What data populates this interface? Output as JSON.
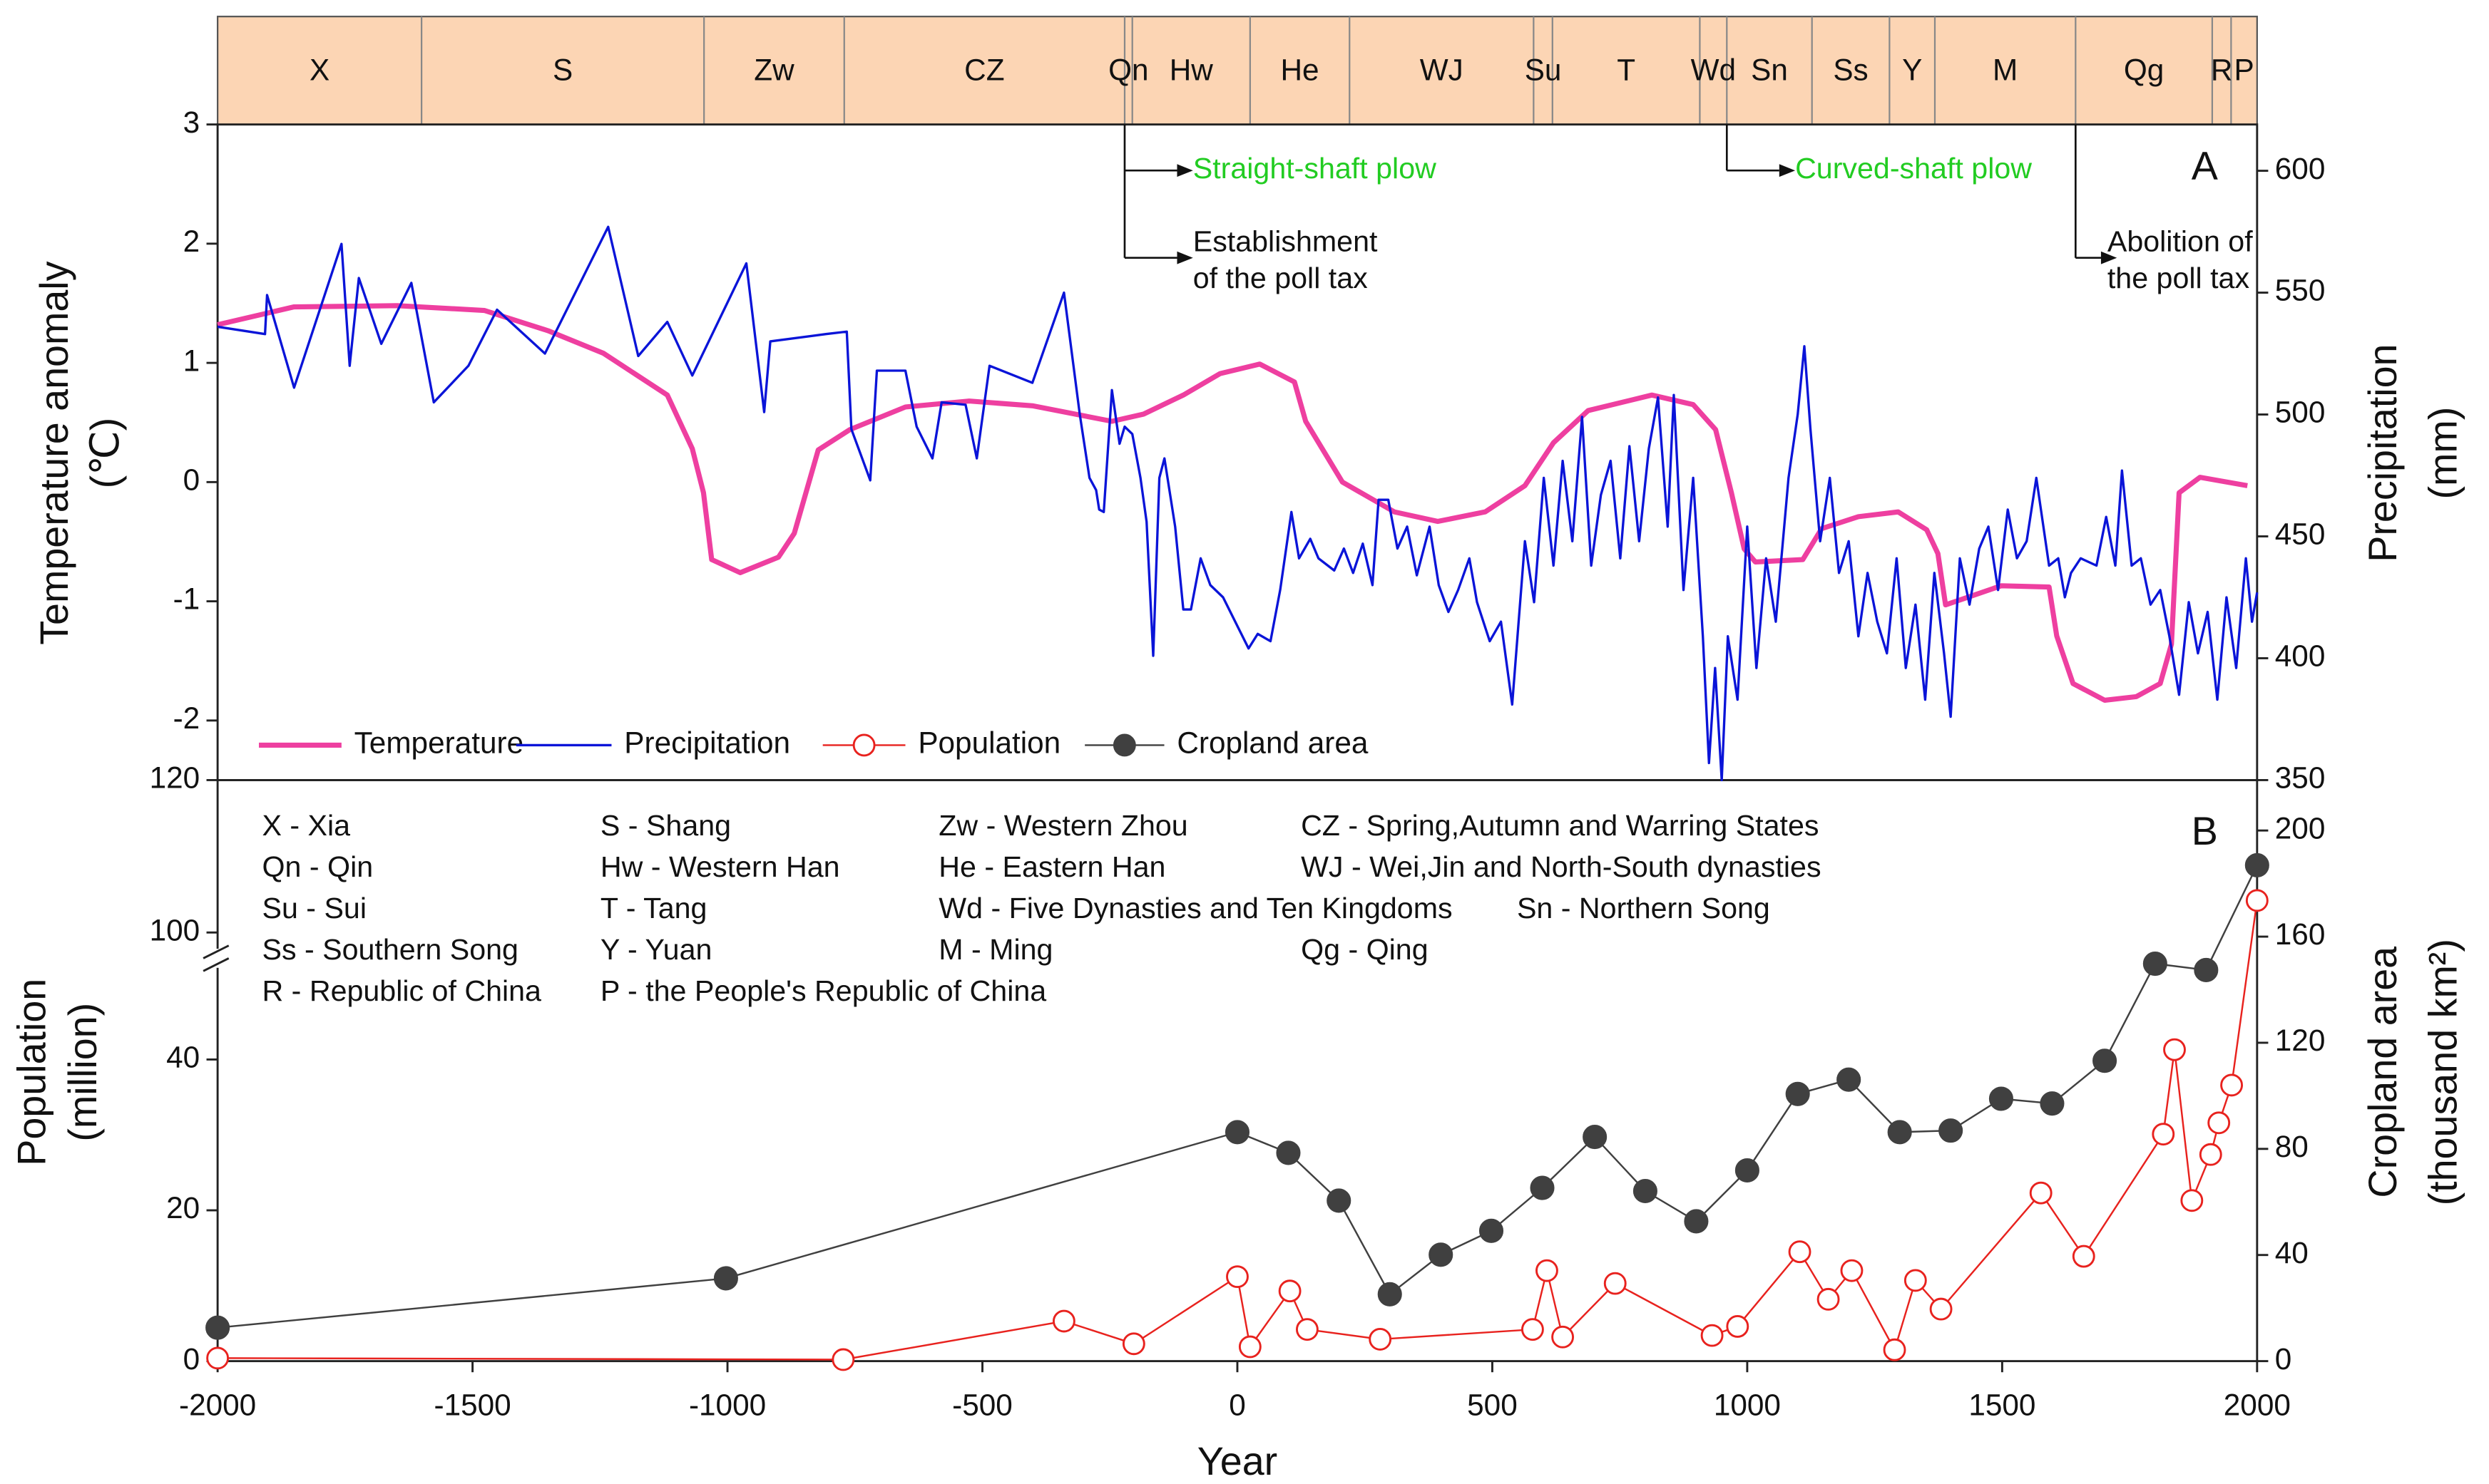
{
  "chart_data": [
    {
      "type": "line",
      "panel_label": "A",
      "xlim": [
        -2000,
        2000
      ],
      "ylim": [
        -2.5,
        3
      ],
      "yticks": [
        3,
        2,
        1,
        0,
        -1,
        -2
      ],
      "y2lim": [
        350,
        619
      ],
      "y2ticks": [
        350,
        400,
        450,
        500,
        550,
        600
      ],
      "ylabel": [
        "Temperature anomaly",
        "(℃)"
      ],
      "y2label": [
        "Precipitation",
        "(mm)"
      ],
      "legend": "lower left",
      "period_bounds": [
        -2000,
        -1600,
        -1046,
        -771,
        -221,
        -206,
        25,
        220,
        581,
        618,
        907,
        960,
        1127,
        1279,
        1368,
        1644,
        1912,
        1949,
        2000
      ],
      "period_labels": [
        "X",
        "S",
        "Zw",
        "CZ",
        "Qn",
        "Hw",
        "He",
        "WJ",
        "Su",
        "T",
        "Wd",
        "Sn",
        "Ss",
        "Y",
        "M",
        "Qg",
        "R",
        "P"
      ],
      "period_color": "#fcd5b4",
      "annotations": [
        {
          "x": -221,
          "lines": [
            "Straight-shaft plow"
          ],
          "color": "#22cc22"
        },
        {
          "x": -221,
          "lines": [
            "Establishment",
            "of the poll tax"
          ],
          "color": "#111111"
        },
        {
          "x": 960,
          "lines": [
            "Curved-shaft plow"
          ],
          "color": "#22cc22"
        },
        {
          "x": 1644,
          "lines": [
            "Abolition of",
            "the poll tax"
          ],
          "color": "#111111"
        }
      ],
      "series": [
        {
          "name": "Temperature",
          "color": "#ee3fa0",
          "x": [
            -2000,
            -1850,
            -1648,
            -1477,
            -1352,
            -1243,
            -1118,
            -1069,
            -1047,
            -1031,
            -975,
            -900,
            -869,
            -822,
            -760,
            -651,
            -526,
            -402,
            -246,
            -184,
            -106,
            -34,
            44,
            112,
            134,
            206,
            308,
            393,
            486,
            564,
            620,
            688,
            813,
            894,
            938,
            969,
            994,
            1016,
            1109,
            1146,
            1218,
            1296,
            1352,
            1374,
            1389,
            1498,
            1592,
            1607,
            1639,
            1701,
            1763,
            1810,
            1832,
            1847,
            1888,
            1981
          ],
          "values": [
            1.32,
            1.47,
            1.48,
            1.44,
            1.27,
            1.08,
            0.73,
            0.28,
            -0.09,
            -0.65,
            -0.76,
            -0.63,
            -0.43,
            0.27,
            0.44,
            0.63,
            0.68,
            0.64,
            0.51,
            0.57,
            0.73,
            0.91,
            0.99,
            0.84,
            0.51,
            0.0,
            -0.25,
            -0.33,
            -0.25,
            -0.03,
            0.33,
            0.6,
            0.73,
            0.65,
            0.44,
            -0.09,
            -0.56,
            -0.67,
            -0.65,
            -0.39,
            -0.29,
            -0.25,
            -0.4,
            -0.6,
            -1.03,
            -0.87,
            -0.88,
            -1.29,
            -1.69,
            -1.83,
            -1.8,
            -1.69,
            -1.36,
            -0.09,
            0.04,
            -0.03
          ]
        },
        {
          "name": "Precipitation",
          "color": "#0a14d8",
          "axis": "y2",
          "x": [
            -2000,
            -1907,
            -1903,
            -1850,
            -1757,
            -1741,
            -1723,
            -1679,
            -1620,
            -1576,
            -1508,
            -1452,
            -1358,
            -1234,
            -1175,
            -1118,
            -1069,
            -963,
            -928,
            -916,
            -807,
            -766,
            -757,
            -720,
            -707,
            -651,
            -629,
            -598,
            -580,
            -533,
            -511,
            -486,
            -402,
            -340,
            -309,
            -290,
            -277,
            -271,
            -262,
            -246,
            -231,
            -221,
            -206,
            -190,
            -178,
            -165,
            -153,
            -143,
            -122,
            -106,
            -91,
            -72,
            -53,
            -28,
            3,
            22,
            40,
            65,
            84,
            106,
            121,
            143,
            159,
            190,
            209,
            227,
            246,
            265,
            277,
            296,
            314,
            333,
            352,
            377,
            395,
            414,
            433,
            455,
            470,
            495,
            517,
            539,
            564,
            582,
            601,
            620,
            638,
            657,
            676,
            694,
            713,
            732,
            751,
            769,
            788,
            807,
            825,
            844,
            856,
            875,
            894,
            913,
            925,
            937,
            950,
            962,
            981,
            1000,
            1018,
            1037,
            1056,
            1081,
            1099,
            1112,
            1124,
            1143,
            1162,
            1180,
            1199,
            1218,
            1236,
            1255,
            1274,
            1293,
            1311,
            1330,
            1349,
            1367,
            1386,
            1399,
            1417,
            1436,
            1455,
            1473,
            1492,
            1511,
            1529,
            1548,
            1567,
            1592,
            1610,
            1623,
            1635,
            1654,
            1685,
            1704,
            1722,
            1735,
            1754,
            1772,
            1791,
            1810,
            1828,
            1847,
            1866,
            1884,
            1903,
            1922,
            1940,
            1959,
            1978,
            1990,
            2000
          ],
          "values": [
            536,
            533,
            549,
            511,
            570,
            520,
            556,
            529,
            554,
            505,
            520,
            543,
            525,
            577,
            524,
            538,
            516,
            562,
            501,
            530,
            533,
            534,
            494,
            473,
            518,
            518,
            495,
            482,
            505,
            504,
            482,
            520,
            513,
            550,
            500,
            474,
            469,
            461,
            460,
            510,
            488,
            495,
            492,
            474,
            456,
            401,
            474,
            482,
            454,
            420,
            420,
            441,
            430,
            425,
            412,
            404,
            410,
            407,
            428,
            460,
            441,
            449,
            441,
            436,
            445,
            435,
            447,
            430,
            465,
            465,
            445,
            454,
            434,
            454,
            430,
            419,
            428,
            441,
            423,
            407,
            415,
            381,
            448,
            423,
            474,
            438,
            481,
            448,
            499,
            438,
            467,
            481,
            441,
            487,
            448,
            486,
            507,
            454,
            508,
            428,
            474,
            409,
            357,
            396,
            350,
            409,
            383,
            454,
            396,
            441,
            415,
            474,
            500,
            528,
            494,
            448,
            474,
            435,
            448,
            409,
            435,
            415,
            402,
            441,
            396,
            422,
            383,
            435,
            402,
            376,
            441,
            422,
            445,
            454,
            428,
            461,
            441,
            448,
            474,
            438,
            441,
            425,
            435,
            441,
            438,
            458,
            438,
            477,
            438,
            441,
            422,
            428,
            409,
            385,
            423,
            402,
            419,
            383,
            425,
            396,
            441,
            415,
            427
          ]
        }
      ]
    },
    {
      "type": "line",
      "panel_label": "B",
      "xlim": [
        -2000,
        2000
      ],
      "xticks": [
        -2000,
        -1500,
        -1000,
        -500,
        0,
        500,
        1000,
        1500,
        2000
      ],
      "xlabel": "Year",
      "ylim": [
        0,
        120
      ],
      "ybreak": [
        50,
        100
      ],
      "yticks": [
        0,
        20,
        40,
        100,
        120
      ],
      "y2lim": [
        0,
        219
      ],
      "y2ticks": [
        0,
        40,
        80,
        120,
        160,
        200
      ],
      "ylabel": [
        "Population",
        "(million)"
      ],
      "y2label": [
        "Cropland area",
        "(thousand km²)"
      ],
      "notes": [
        "X - Xia",
        "S - Shang",
        "Zw - Western Zhou",
        "CZ - Spring,Autumn and Warring States",
        "Qn - Qin",
        "Hw - Western Han",
        "He - Eastern Han",
        "WJ - Wei,Jin and North-South dynasties",
        "Su - Sui",
        "T - Tang",
        "Wd - Five Dynasties and Ten Kingdoms",
        "Sn - Northern Song",
        "Ss - Southern Song",
        "Y - Yuan",
        "M - Ming",
        "Qg - Qing",
        "R - Republic of China",
        "P - the People's Republic of China"
      ],
      "series": [
        {
          "name": "Population",
          "color": "#e8221e",
          "marker": "open",
          "x": [
            -2000,
            -773,
            -340,
            -203,
            0,
            25,
            103,
            137,
            280,
            579,
            607,
            638,
            741,
            931,
            981,
            1103,
            1159,
            1205,
            1289,
            1330,
            1380,
            1576,
            1660,
            1816,
            1838,
            1872,
            1909,
            1925,
            1950,
            2000
          ],
          "values": [
            0.4,
            0.2,
            5.3,
            2.3,
            11.2,
            1.9,
            9.3,
            4.2,
            2.9,
            4.2,
            12.0,
            3.2,
            10.3,
            3.4,
            4.6,
            14.5,
            8.2,
            12.0,
            1.5,
            10.7,
            6.9,
            22.3,
            13.9,
            30.1,
            41.3,
            21.3,
            27.4,
            31.6,
            36.6,
            104.2
          ]
        },
        {
          "name": "Cropland area",
          "color": "#404040",
          "marker": "filled",
          "axis": "y2",
          "x": [
            -2000,
            -1003,
            0,
            100,
            199,
            299,
            399,
            498,
            598,
            701,
            800,
            900,
            1000,
            1099,
            1199,
            1299,
            1399,
            1498,
            1598,
            1701,
            1800,
            1900,
            2000
          ],
          "values": [
            12.6,
            31.2,
            86.3,
            78.5,
            60.5,
            25.2,
            40.1,
            49.1,
            65.3,
            84.5,
            64.1,
            52.7,
            71.9,
            100.7,
            106.1,
            86.3,
            86.9,
            98.9,
            97.1,
            113.2,
            149.8,
            147.4,
            186.9
          ]
        }
      ]
    }
  ]
}
